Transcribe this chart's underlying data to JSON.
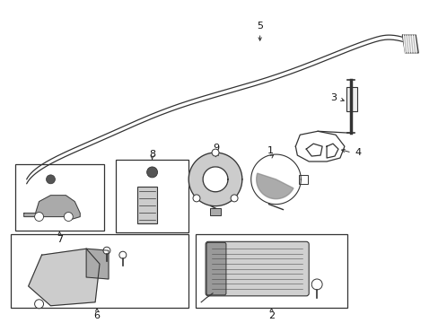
{
  "background_color": "#ffffff",
  "figsize": [
    4.89,
    3.6
  ],
  "dpi": 100,
  "line_color": "#333333",
  "text_color": "#111111",
  "font_size": 8.0
}
